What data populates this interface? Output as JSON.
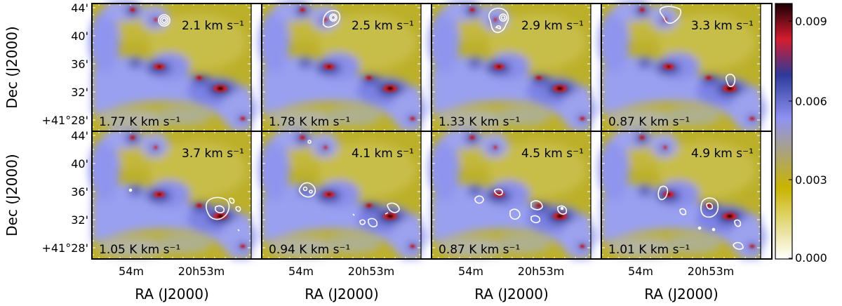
{
  "figure": {
    "ylabel": "Dec (J2000)",
    "xlabel": "RA (J2000)",
    "y_ticks": [
      "44'",
      "40'",
      "36'",
      "32'",
      "+41°28'"
    ],
    "x_ticks": [
      "54m",
      "20h53m"
    ],
    "colorbar": {
      "ticks": [
        "0.009",
        "0.006",
        "0.003",
        "0.000"
      ],
      "range": [
        0.0,
        0.0095
      ],
      "colors": [
        "#ffffff",
        "#c8b400",
        "#8f92f2",
        "#2e3a9a",
        "#d41c2e",
        "#1a0004"
      ]
    },
    "panels": [
      {
        "velocity": "2.1",
        "velocity_unit": "km s⁻¹",
        "integrated": "1.77",
        "integrated_unit": "K km s⁻¹"
      },
      {
        "velocity": "2.5",
        "velocity_unit": "km s⁻¹",
        "integrated": "1.78",
        "integrated_unit": "K km s⁻¹"
      },
      {
        "velocity": "2.9",
        "velocity_unit": "km s⁻¹",
        "integrated": "1.33",
        "integrated_unit": "K km s⁻¹"
      },
      {
        "velocity": "3.3",
        "velocity_unit": "km s⁻¹",
        "integrated": "0.87",
        "integrated_unit": "K km s⁻¹"
      },
      {
        "velocity": "3.7",
        "velocity_unit": "km s⁻¹",
        "integrated": "1.05",
        "integrated_unit": "K km s⁻¹"
      },
      {
        "velocity": "4.1",
        "velocity_unit": "km s⁻¹",
        "integrated": "0.94",
        "integrated_unit": "K km s⁻¹"
      },
      {
        "velocity": "4.5",
        "velocity_unit": "km s⁻¹",
        "integrated": "0.87",
        "integrated_unit": "K km s⁻¹"
      },
      {
        "velocity": "4.9",
        "velocity_unit": "km s⁻¹",
        "integrated": "1.01",
        "integrated_unit": "K km s⁻¹"
      }
    ]
  }
}
